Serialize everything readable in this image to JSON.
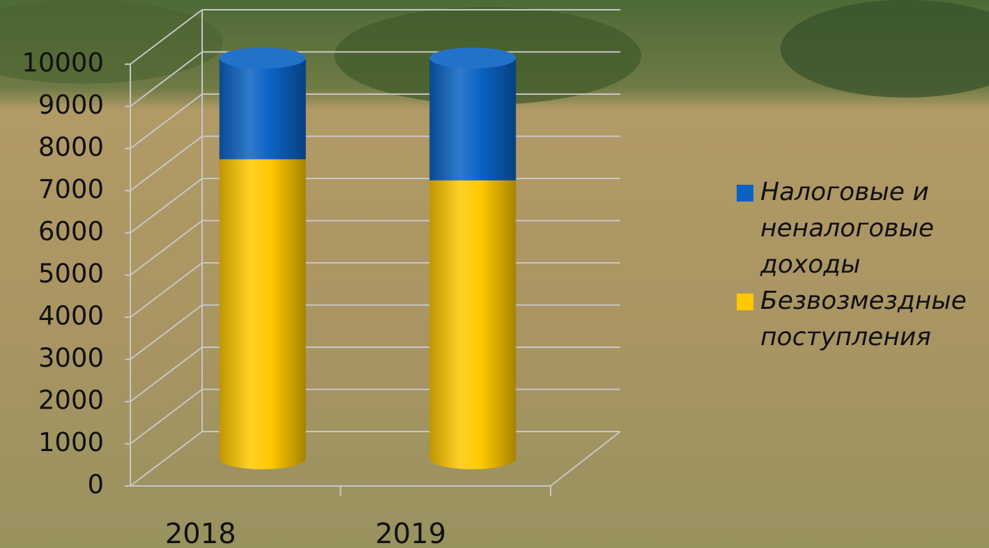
{
  "chart_data": {
    "type": "bar3d_stacked_cylinder",
    "categories": [
      "2018",
      "2019"
    ],
    "series": [
      {
        "name": "Налоговые и неналоговые доходы",
        "color": "#0a62c4",
        "values": [
          2400,
          2900
        ]
      },
      {
        "name": "Безвозмездные поступления",
        "color": "#ffc800",
        "values": [
          7100,
          6600
        ]
      }
    ],
    "ylim": [
      0,
      10000
    ],
    "yticks": [
      0,
      1000,
      2000,
      3000,
      4000,
      5000,
      6000,
      7000,
      8000,
      9000,
      10000
    ],
    "grid": true,
    "legend": "right"
  }
}
